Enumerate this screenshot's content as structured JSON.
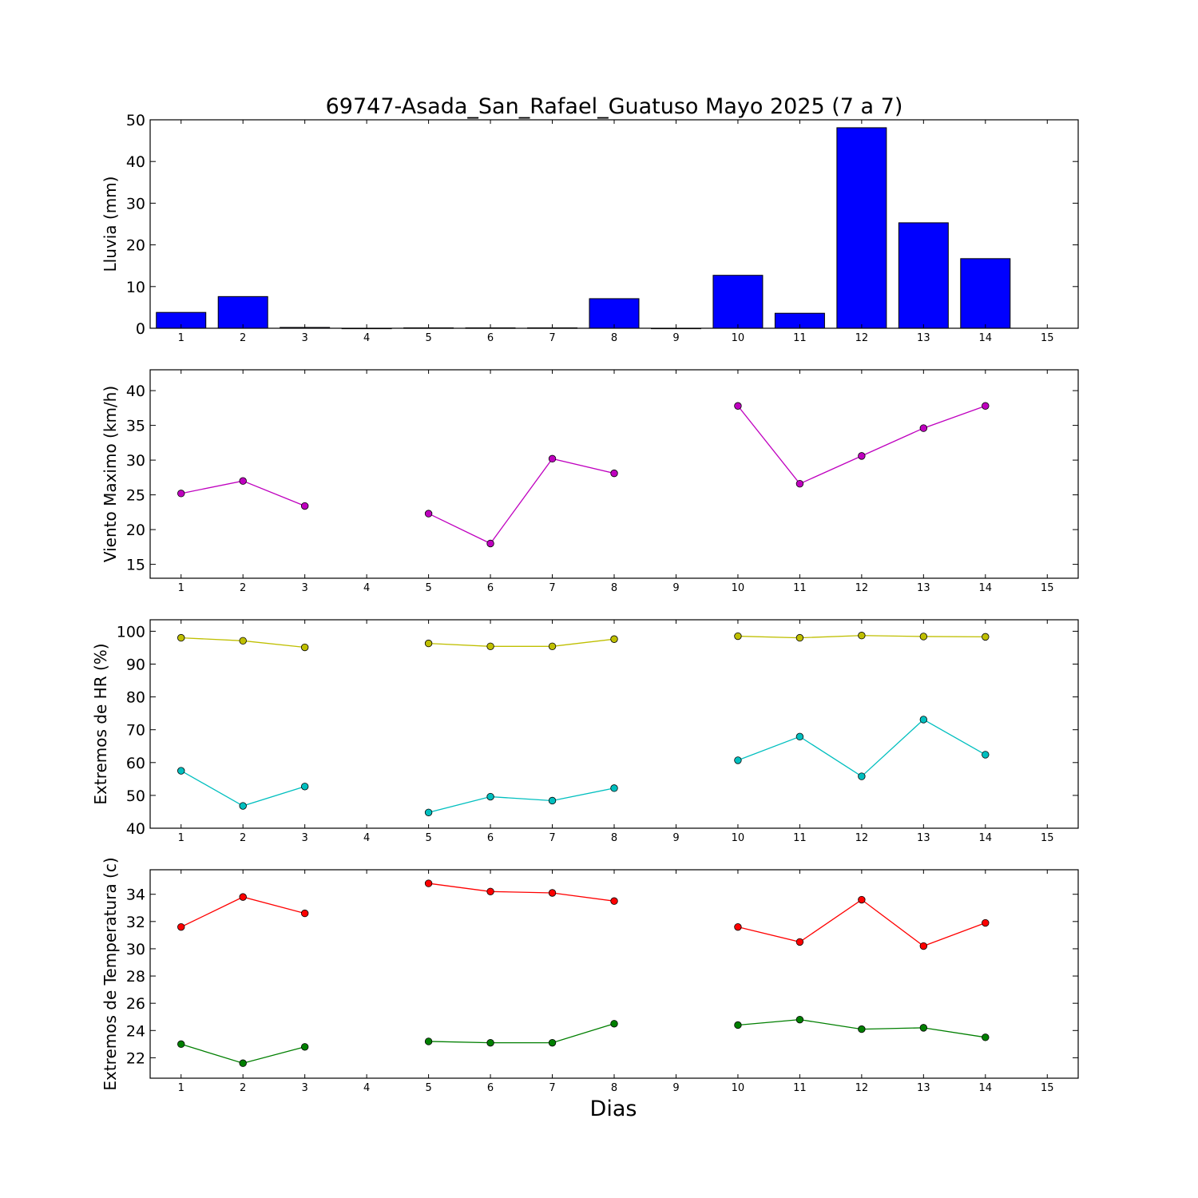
{
  "title": "69747-Asada_San_Rafael_Guatuso Mayo 2025  (7 a 7)",
  "xlabel": "Dias",
  "chart_data": [
    {
      "type": "bar",
      "ylabel": "Lluvia (mm)",
      "xlim": [
        0.5,
        15.5
      ],
      "ylim": [
        0,
        50
      ],
      "yticks": [
        0,
        10,
        20,
        30,
        40,
        50
      ],
      "xticks": [
        1,
        2,
        3,
        4,
        5,
        6,
        7,
        8,
        9,
        10,
        11,
        12,
        13,
        14,
        15
      ],
      "categories": [
        1,
        2,
        3,
        4,
        5,
        6,
        7,
        8,
        9,
        10,
        11,
        12,
        13,
        14
      ],
      "series": [
        {
          "color": "#0000ff",
          "values": [
            3.8,
            7.6,
            0.2,
            0.0,
            0.1,
            0.1,
            0.1,
            7.1,
            0.0,
            12.7,
            3.6,
            48.1,
            25.3,
            16.7
          ]
        }
      ]
    },
    {
      "type": "line",
      "ylabel": "Viento Maximo (km/h)",
      "xlim": [
        0.5,
        15.5
      ],
      "ylim": [
        13,
        43
      ],
      "yticks": [
        15,
        20,
        25,
        30,
        35,
        40
      ],
      "xticks": [
        1,
        2,
        3,
        4,
        5,
        6,
        7,
        8,
        9,
        10,
        11,
        12,
        13,
        14,
        15
      ],
      "x": [
        1,
        2,
        3,
        4,
        5,
        6,
        7,
        8,
        9,
        10,
        11,
        12,
        13,
        14
      ],
      "series": [
        {
          "color": "#bf00bf",
          "values": [
            25.2,
            27.0,
            23.4,
            null,
            22.3,
            18.0,
            30.2,
            28.1,
            null,
            37.8,
            26.6,
            30.6,
            34.6,
            37.8
          ]
        }
      ]
    },
    {
      "type": "line",
      "ylabel": "Extremos de HR (%)",
      "xlim": [
        0.5,
        15.5
      ],
      "ylim": [
        40,
        103.5
      ],
      "yticks": [
        40,
        50,
        60,
        70,
        80,
        90,
        100
      ],
      "xticks": [
        1,
        2,
        3,
        4,
        5,
        6,
        7,
        8,
        9,
        10,
        11,
        12,
        13,
        14,
        15
      ],
      "x": [
        1,
        2,
        3,
        4,
        5,
        6,
        7,
        8,
        9,
        10,
        11,
        12,
        13,
        14
      ],
      "series": [
        {
          "color": "#bfbf00",
          "values": [
            98.0,
            97.1,
            95.1,
            null,
            96.3,
            95.4,
            95.4,
            97.6,
            null,
            98.5,
            98.0,
            98.7,
            98.4,
            98.3
          ]
        },
        {
          "color": "#00bfbf",
          "values": [
            57.5,
            46.8,
            52.7,
            null,
            44.8,
            49.6,
            48.4,
            52.2,
            null,
            60.7,
            67.9,
            55.8,
            73.1,
            62.4
          ]
        }
      ]
    },
    {
      "type": "line",
      "ylabel": "Extremos de Temperatura (c)",
      "xlim": [
        0.5,
        15.5
      ],
      "ylim": [
        20.5,
        35.8
      ],
      "yticks": [
        22,
        24,
        26,
        28,
        30,
        32,
        34
      ],
      "xticks": [
        1,
        2,
        3,
        4,
        5,
        6,
        7,
        8,
        9,
        10,
        11,
        12,
        13,
        14,
        15
      ],
      "x": [
        1,
        2,
        3,
        4,
        5,
        6,
        7,
        8,
        9,
        10,
        11,
        12,
        13,
        14
      ],
      "series": [
        {
          "color": "#ff0000",
          "values": [
            31.6,
            33.8,
            32.6,
            null,
            34.8,
            34.2,
            34.1,
            33.5,
            null,
            31.6,
            30.5,
            33.6,
            30.2,
            31.9
          ]
        },
        {
          "color": "#007f00",
          "values": [
            23.0,
            21.6,
            22.8,
            null,
            23.2,
            23.1,
            23.1,
            24.5,
            null,
            24.4,
            24.8,
            24.1,
            24.2,
            23.5
          ]
        }
      ]
    }
  ]
}
